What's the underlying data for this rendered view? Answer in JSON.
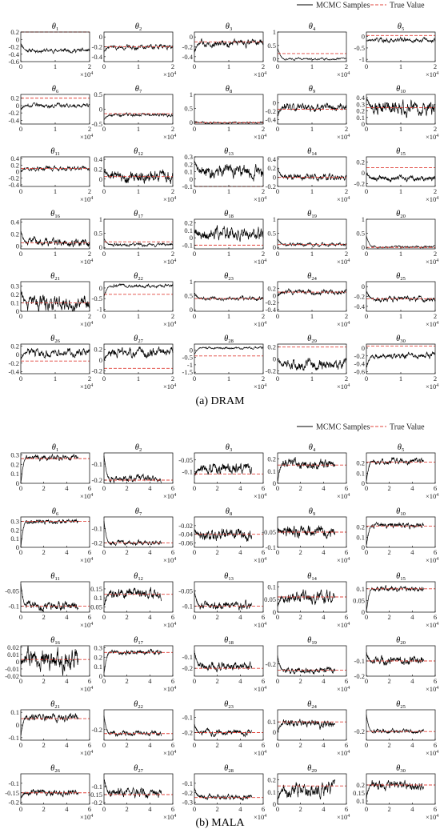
{
  "legend": {
    "mcmc_label": "MCMC Samples",
    "true_label": "True Value"
  },
  "captions": [
    {
      "letter": "(a)",
      "name": "DRAM"
    },
    {
      "letter": "(b)",
      "name": "MALA"
    }
  ],
  "x_multiplier": "×10",
  "x_multiplier_exp": "4",
  "colors": {
    "trace": "#000000",
    "true_value": "#e0443c"
  },
  "chart_data": [
    {
      "type": "line",
      "method": "DRAM",
      "x": {
        "lim": [
          0,
          2
        ],
        "ticks": [
          0,
          1,
          2
        ],
        "scale_label": "×10^4"
      },
      "params": [
        {
          "name": "θ1",
          "ylim": [
            -0.6,
            0.2
          ],
          "yticks": [
            -0.6,
            -0.4,
            -0.2,
            0,
            0.2
          ],
          "true": 0.2,
          "mean": -0.3,
          "noise": 0.03,
          "start": -0.1
        },
        {
          "name": "θ2",
          "ylim": [
            -0.5,
            0.1
          ],
          "yticks": [
            -0.4,
            -0.2,
            0
          ],
          "true": -0.2,
          "mean": -0.2,
          "noise": 0.03,
          "start": -0.3
        },
        {
          "name": "θ3",
          "ylim": [
            -0.5,
            0.1
          ],
          "yticks": [
            -0.4,
            -0.2,
            0
          ],
          "true": -0.1,
          "mean": -0.12,
          "noise": 0.04,
          "start": -0.3
        },
        {
          "name": "θ4",
          "ylim": [
            -0.1,
            1.0
          ],
          "yticks": [
            0,
            0.5,
            1
          ],
          "true": 0.2,
          "mean": 0.0,
          "noise": 0.02,
          "start": 0.4
        },
        {
          "name": "θ5",
          "ylim": [
            -1.1,
            0.2
          ],
          "yticks": [
            -1,
            -0.5,
            0
          ],
          "true": 0.05,
          "mean": -0.15,
          "noise": 0.05,
          "start": -0.2
        },
        {
          "name": "θ6",
          "ylim": [
            -0.5,
            0.3
          ],
          "yticks": [
            -0.4,
            -0.2,
            0,
            0.2
          ],
          "true": 0.2,
          "mean": 0.0,
          "noise": 0.03,
          "start": -0.1
        },
        {
          "name": "θ7",
          "ylim": [
            -0.5,
            0.5
          ],
          "yticks": [
            -0.5,
            0,
            0.5
          ],
          "true": -0.15,
          "mean": -0.2,
          "noise": 0.03,
          "start": -0.35
        },
        {
          "name": "θ8",
          "ylim": [
            -0.05,
            1.0
          ],
          "yticks": [
            0,
            0.5,
            1
          ],
          "true": 0.0,
          "mean": 0.0,
          "noise": 0.02,
          "start": 0.05
        },
        {
          "name": "θ9",
          "ylim": [
            -0.5,
            0.2
          ],
          "yticks": [
            -0.4,
            -0.2,
            0
          ],
          "true": -0.15,
          "mean": -0.1,
          "noise": 0.05,
          "start": -0.3
        },
        {
          "name": "θ10",
          "ylim": [
            0,
            0.45
          ],
          "yticks": [
            0,
            0.1,
            0.2,
            0.3,
            0.4
          ],
          "true": 0.25,
          "mean": 0.25,
          "noise": 0.06,
          "start": 0.4
        },
        {
          "name": "θ11",
          "ylim": [
            -0.45,
            0.45
          ],
          "yticks": [
            -0.4,
            -0.2,
            0,
            0.2,
            0.4
          ],
          "true": 0.1,
          "mean": 0.1,
          "noise": 0.04,
          "start": 0.0
        },
        {
          "name": "θ12",
          "ylim": [
            -0.15,
            0.45
          ],
          "yticks": [
            0,
            0.2,
            0.4
          ],
          "true": 0.05,
          "mean": 0.05,
          "noise": 0.07,
          "start": 0.2
        },
        {
          "name": "θ13",
          "ylim": [
            -0.1,
            0.3
          ],
          "yticks": [
            -0.1,
            0,
            0.1,
            0.2,
            0.3
          ],
          "true": -0.1,
          "mean": 0.1,
          "noise": 0.05,
          "start": 0.25
        },
        {
          "name": "θ14",
          "ylim": [
            -0.2,
            0.45
          ],
          "yticks": [
            -0.2,
            0,
            0.2,
            0.4
          ],
          "true": 0.0,
          "mean": 0.0,
          "noise": 0.04,
          "start": 0.2
        },
        {
          "name": "θ15",
          "ylim": [
            -0.25,
            0.3
          ],
          "yticks": [
            -0.2,
            0,
            0.2
          ],
          "true": 0.1,
          "mean": -0.1,
          "noise": 0.03,
          "start": 0.0
        },
        {
          "name": "θ16",
          "ylim": [
            -0.05,
            0.45
          ],
          "yticks": [
            0,
            0.2,
            0.4
          ],
          "true": 0.05,
          "mean": 0.05,
          "noise": 0.04,
          "start": 0.25
        },
        {
          "name": "θ17",
          "ylim": [
            -0.05,
            1.0
          ],
          "yticks": [
            0,
            0.5,
            1
          ],
          "true": 0.2,
          "mean": 0.1,
          "noise": 0.03,
          "start": 0.3
        },
        {
          "name": "θ18",
          "ylim": [
            -0.15,
            0.25
          ],
          "yticks": [
            -0.1,
            0,
            0.1,
            0.2
          ],
          "true": -0.1,
          "mean": 0.05,
          "noise": 0.05,
          "start": 0.1
        },
        {
          "name": "θ19",
          "ylim": [
            -0.05,
            1.0
          ],
          "yticks": [
            0,
            0.5,
            1
          ],
          "true": 0.1,
          "mean": 0.1,
          "noise": 0.03,
          "start": 0.3
        },
        {
          "name": "θ20",
          "ylim": [
            -0.05,
            1.0
          ],
          "yticks": [
            0,
            0.5,
            1
          ],
          "true": 0.0,
          "mean": 0.02,
          "noise": 0.02,
          "start": 0.4
        },
        {
          "name": "θ21",
          "ylim": [
            0,
            0.35
          ],
          "yticks": [
            0,
            0.1,
            0.2,
            0.3
          ],
          "true": 0.1,
          "mean": 0.1,
          "noise": 0.05,
          "start": 0.25
        },
        {
          "name": "θ22",
          "ylim": [
            -1.1,
            0.3
          ],
          "yticks": [
            -1,
            -0.5,
            0
          ],
          "true": -0.3,
          "mean": 0.1,
          "noise": 0.04,
          "start": -0.4
        },
        {
          "name": "θ23",
          "ylim": [
            -0.05,
            1.0
          ],
          "yticks": [
            0,
            0.5,
            1
          ],
          "true": 0.4,
          "mean": 0.4,
          "noise": 0.04,
          "start": 0.6
        },
        {
          "name": "θ24",
          "ylim": [
            -0.45,
            0.4
          ],
          "yticks": [
            -0.4,
            -0.2,
            0,
            0.2
          ],
          "true": 0.1,
          "mean": 0.1,
          "noise": 0.04,
          "start": 0.0
        },
        {
          "name": "θ25",
          "ylim": [
            -0.5,
            0.1
          ],
          "yticks": [
            -0.4,
            -0.2,
            0
          ],
          "true": -0.25,
          "mean": -0.25,
          "noise": 0.03,
          "start": -0.1
        },
        {
          "name": "θ26",
          "ylim": [
            -0.45,
            0.25
          ],
          "yticks": [
            -0.4,
            -0.2,
            0,
            0.2
          ],
          "true": -0.15,
          "mean": 0.05,
          "noise": 0.05,
          "start": -0.1
        },
        {
          "name": "θ27",
          "ylim": [
            -0.25,
            0.3
          ],
          "yticks": [
            -0.2,
            0,
            0.2
          ],
          "true": -0.15,
          "mean": 0.15,
          "noise": 0.05,
          "start": 0.0
        },
        {
          "name": "θ28",
          "ylim": [
            -1.6,
            0.4
          ],
          "yticks": [
            -1.5,
            -1,
            -0.5,
            0
          ],
          "true": -0.4,
          "mean": 0.15,
          "noise": 0.04,
          "start": -0.3
        },
        {
          "name": "θ29",
          "ylim": [
            -0.25,
            0.25
          ],
          "yticks": [
            -0.2,
            0,
            0.2
          ],
          "true": 0.2,
          "mean": -0.1,
          "noise": 0.05,
          "start": 0.0
        },
        {
          "name": "θ30",
          "ylim": [
            -0.65,
            0.1
          ],
          "yticks": [
            -0.6,
            -0.4,
            -0.2,
            0
          ],
          "true": 0.05,
          "mean": -0.2,
          "noise": 0.04,
          "start": -0.5
        }
      ]
    },
    {
      "type": "line",
      "method": "MALA",
      "x": {
        "lim": [
          0,
          6
        ],
        "ticks": [
          0,
          2,
          4,
          6
        ],
        "scale_label": "×10^4",
        "data_end": 5
      },
      "params": [
        {
          "name": "θ1",
          "ylim": [
            0,
            0.32
          ],
          "yticks": [
            0,
            0.1,
            0.2,
            0.3
          ],
          "true": 0.26,
          "mean": 0.27,
          "noise": 0.015,
          "start": 0.0
        },
        {
          "name": "θ2",
          "ylim": [
            -0.22,
            -0.03
          ],
          "yticks": [
            -0.2,
            -0.1
          ],
          "true": -0.2,
          "mean": -0.19,
          "noise": 0.01,
          "start": -0.05
        },
        {
          "name": "θ3",
          "ylim": [
            -0.15,
            -0.02
          ],
          "yticks": [
            -0.1,
            -0.05
          ],
          "true": -0.11,
          "mean": -0.09,
          "noise": 0.012,
          "start": -0.12
        },
        {
          "name": "θ4",
          "ylim": [
            0,
            0.25
          ],
          "yticks": [
            0,
            0.1,
            0.2
          ],
          "true": 0.15,
          "mean": 0.16,
          "noise": 0.02,
          "start": 0.02
        },
        {
          "name": "θ5",
          "ylim": [
            0,
            0.3
          ],
          "yticks": [
            0,
            0.1,
            0.2
          ],
          "true": 0.21,
          "mean": 0.22,
          "noise": 0.015,
          "start": 0.02
        },
        {
          "name": "θ6",
          "ylim": [
            0,
            0.35
          ],
          "yticks": [
            0,
            0.1,
            0.2,
            0.3
          ],
          "true": 0.3,
          "mean": 0.3,
          "noise": 0.015,
          "start": 0.0
        },
        {
          "name": "θ7",
          "ylim": [
            -0.23,
            -0.02
          ],
          "yticks": [
            -0.2,
            -0.1
          ],
          "true": -0.2,
          "mean": -0.2,
          "noise": 0.008,
          "start": -0.05
        },
        {
          "name": "θ8",
          "ylim": [
            -0.07,
            0.0
          ],
          "yticks": [
            -0.06,
            -0.04,
            -0.02
          ],
          "true": -0.04,
          "mean": -0.04,
          "noise": 0.007,
          "start": -0.03
        },
        {
          "name": "θ9",
          "ylim": [
            -0.1,
            0.0
          ],
          "yticks": [
            -0.1,
            -0.05
          ],
          "true": -0.05,
          "mean": -0.05,
          "noise": 0.01,
          "start": -0.04
        },
        {
          "name": "θ10",
          "ylim": [
            0,
            0.3
          ],
          "yticks": [
            0,
            0.1,
            0.2
          ],
          "true": 0.21,
          "mean": 0.21,
          "noise": 0.015,
          "start": 0.02
        },
        {
          "name": "θ11",
          "ylim": [
            -0.12,
            -0.02
          ],
          "yticks": [
            -0.1,
            -0.05
          ],
          "true": -0.1,
          "mean": -0.1,
          "noise": 0.008,
          "start": -0.03
        },
        {
          "name": "θ12",
          "ylim": [
            0.02,
            0.19
          ],
          "yticks": [
            0.05,
            0.1,
            0.15
          ],
          "true": 0.12,
          "mean": 0.12,
          "noise": 0.015,
          "start": 0.05
        },
        {
          "name": "θ13",
          "ylim": [
            -0.12,
            -0.02
          ],
          "yticks": [
            -0.1,
            -0.05
          ],
          "true": -0.1,
          "mean": -0.1,
          "noise": 0.007,
          "start": -0.05
        },
        {
          "name": "θ14",
          "ylim": [
            0,
            0.12
          ],
          "yticks": [
            0,
            0.05,
            0.1
          ],
          "true": 0.06,
          "mean": 0.06,
          "noise": 0.012,
          "start": 0.02
        },
        {
          "name": "θ15",
          "ylim": [
            0,
            0.13
          ],
          "yticks": [
            0,
            0.05,
            0.1
          ],
          "true": 0.1,
          "mean": 0.1,
          "noise": 0.006,
          "start": 0.0
        },
        {
          "name": "θ16",
          "ylim": [
            -0.02,
            0.022
          ],
          "yticks": [
            -0.02,
            -0.01,
            0,
            0.01,
            0.02
          ],
          "true": 0.003,
          "mean": 0.003,
          "noise": 0.008,
          "start": 0.0
        },
        {
          "name": "θ17",
          "ylim": [
            0,
            0.32
          ],
          "yticks": [
            0,
            0.1,
            0.2,
            0.3
          ],
          "true": 0.25,
          "mean": 0.25,
          "noise": 0.015,
          "start": 0.03
        },
        {
          "name": "θ18",
          "ylim": [
            -0.27,
            0.0
          ],
          "yticks": [
            -0.2,
            -0.1
          ],
          "true": -0.2,
          "mean": -0.18,
          "noise": 0.02,
          "start": -0.05
        },
        {
          "name": "θ19",
          "ylim": [
            -0.28,
            -0.08
          ],
          "yticks": [
            -0.2
          ],
          "true": -0.24,
          "mean": -0.24,
          "noise": 0.01,
          "start": -0.15
        },
        {
          "name": "θ20",
          "ylim": [
            -0.2,
            0.0
          ],
          "yticks": [
            -0.2,
            -0.1
          ],
          "true": -0.1,
          "mean": -0.1,
          "noise": 0.015,
          "start": -0.05
        },
        {
          "name": "θ21",
          "ylim": [
            -0.12,
            0.12
          ],
          "yticks": [
            -0.1,
            0,
            0.1
          ],
          "true": 0.05,
          "mean": 0.06,
          "noise": 0.015,
          "start": -0.08
        },
        {
          "name": "θ22",
          "ylim": [
            -0.28,
            -0.05
          ],
          "yticks": [
            -0.2
          ],
          "true": -0.23,
          "mean": -0.23,
          "noise": 0.01,
          "start": -0.1
        },
        {
          "name": "θ23",
          "ylim": [
            -0.25,
            -0.05
          ],
          "yticks": [
            -0.2,
            -0.1
          ],
          "true": -0.2,
          "mean": -0.2,
          "noise": 0.01,
          "start": -0.15
        },
        {
          "name": "θ24",
          "ylim": [
            -0.08,
            0.22
          ],
          "yticks": [
            0,
            0.1
          ],
          "true": 0.1,
          "mean": 0.08,
          "noise": 0.02,
          "start": 0.0
        },
        {
          "name": "θ25",
          "ylim": [
            -0.28,
            0.0
          ],
          "yticks": [
            -0.2
          ],
          "true": -0.2,
          "mean": -0.2,
          "noise": 0.01,
          "start": -0.05
        },
        {
          "name": "θ26",
          "ylim": [
            -0.21,
            -0.05
          ],
          "yticks": [
            -0.2,
            -0.15,
            -0.1
          ],
          "true": -0.15,
          "mean": -0.15,
          "noise": 0.01,
          "start": -0.18
        },
        {
          "name": "θ27",
          "ylim": [
            -0.21,
            -0.02
          ],
          "yticks": [
            -0.2,
            -0.15,
            -0.1
          ],
          "true": -0.15,
          "mean": -0.14,
          "noise": 0.015,
          "start": -0.05
        },
        {
          "name": "θ28",
          "ylim": [
            -0.32,
            0.0
          ],
          "yticks": [
            -0.3,
            -0.2,
            -0.1
          ],
          "true": -0.25,
          "mean": -0.24,
          "noise": 0.015,
          "start": -0.15
        },
        {
          "name": "θ29",
          "ylim": [
            0,
            0.25
          ],
          "yticks": [
            0,
            0.1,
            0.2
          ],
          "true": 0.15,
          "mean": 0.12,
          "noise": 0.03,
          "start": 0.03
        },
        {
          "name": "θ30",
          "ylim": [
            0.08,
            0.27
          ],
          "yticks": [
            0.1,
            0.15,
            0.2
          ],
          "true": 0.2,
          "mean": 0.2,
          "noise": 0.015,
          "start": 0.12
        }
      ]
    }
  ]
}
